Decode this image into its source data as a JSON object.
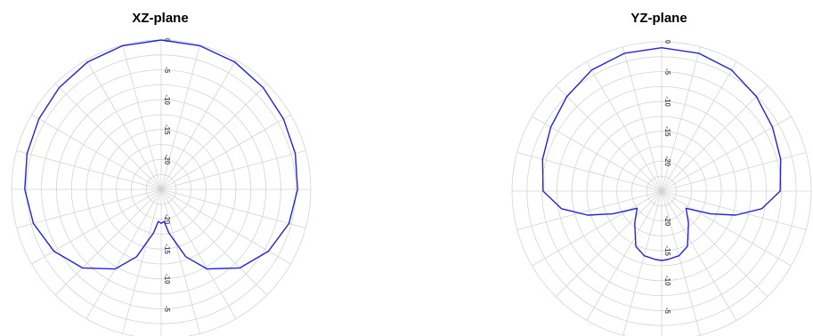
{
  "chart_data": [
    {
      "type": "polar-line",
      "title": "XZ-plane",
      "radial_tick_labels": [
        "0",
        "-5",
        "-10",
        "-15",
        "-20"
      ],
      "radial_ticks_db": [
        0,
        -5,
        -10,
        -15,
        -20
      ],
      "rlim_db": [
        -25,
        0
      ],
      "grid": true,
      "angle_step_deg": 15,
      "series": [
        {
          "color": "#2222dd",
          "angles_deg": [
            0,
            15,
            30,
            45,
            60,
            75,
            90,
            105,
            120,
            135,
            150,
            160,
            170,
            175,
            180,
            185,
            190,
            200,
            210,
            225,
            240,
            255,
            270,
            285,
            300,
            315,
            330,
            345,
            360
          ],
          "values_db": [
            0,
            -0.1,
            -0.4,
            -0.9,
            -1.4,
            -1.8,
            -2.2,
            -2.9,
            -4.3,
            -6.4,
            -9.6,
            -13.0,
            -17.6,
            -19.6,
            -19.3,
            -19.6,
            -17.6,
            -13.0,
            -9.6,
            -6.4,
            -4.3,
            -2.9,
            -2.2,
            -1.8,
            -1.4,
            -0.9,
            -0.4,
            -0.1,
            0
          ]
        }
      ]
    },
    {
      "type": "polar-line",
      "title": "YZ-plane",
      "radial_tick_labels": [
        "0",
        "-5",
        "-10",
        "-15",
        "-20"
      ],
      "radial_ticks_db": [
        0,
        -5,
        -10,
        -15,
        -20
      ],
      "rlim_db": [
        -25,
        0
      ],
      "grid": true,
      "angle_step_deg": 15,
      "series": [
        {
          "color": "#2222dd",
          "angles_deg": [
            0,
            15,
            30,
            45,
            60,
            75,
            90,
            100,
            108,
            115,
            125,
            140,
            155,
            165,
            175,
            180,
            185,
            195,
            205,
            220,
            235,
            245,
            252,
            260,
            270,
            285,
            300,
            315,
            330,
            345,
            360
          ],
          "values_db": [
            -1.0,
            -1.1,
            -1.6,
            -2.6,
            -3.6,
            -4.4,
            -5.2,
            -8.0,
            -12.0,
            -16.0,
            -20.0,
            -18.0,
            -14.8,
            -13.8,
            -13.5,
            -13.4,
            -13.5,
            -13.8,
            -14.8,
            -18.0,
            -20.0,
            -16.0,
            -12.0,
            -8.0,
            -5.2,
            -4.4,
            -3.6,
            -2.6,
            -1.6,
            -1.1,
            -1.0
          ]
        }
      ]
    }
  ]
}
